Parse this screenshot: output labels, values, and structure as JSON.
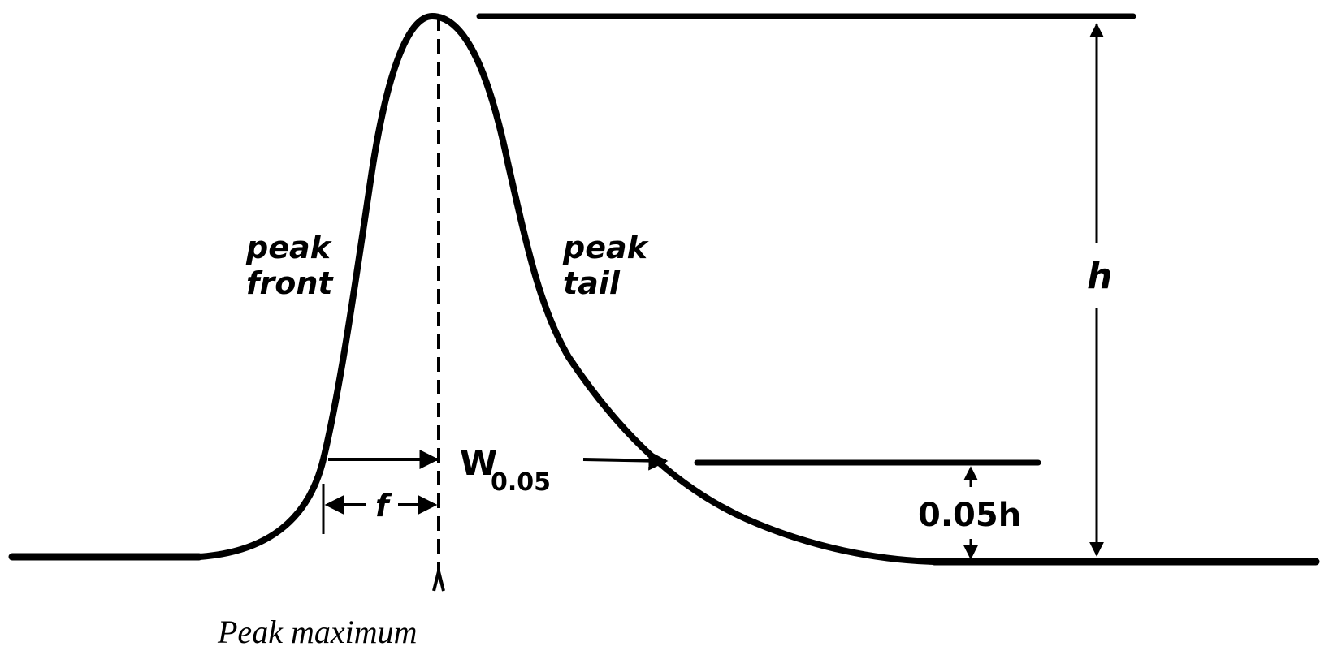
{
  "labels": {
    "peak_front_line1": "peak",
    "peak_front_line2": "front",
    "peak_tail_line1": "peak",
    "peak_tail_line2": "tail",
    "height": "h",
    "width_main": "W",
    "width_sub": "0.05",
    "fraction": "0.05h",
    "front_distance": "f"
  },
  "caption": "Peak maximum",
  "colors": {
    "ink": "#000000",
    "background": "#ffffff"
  }
}
